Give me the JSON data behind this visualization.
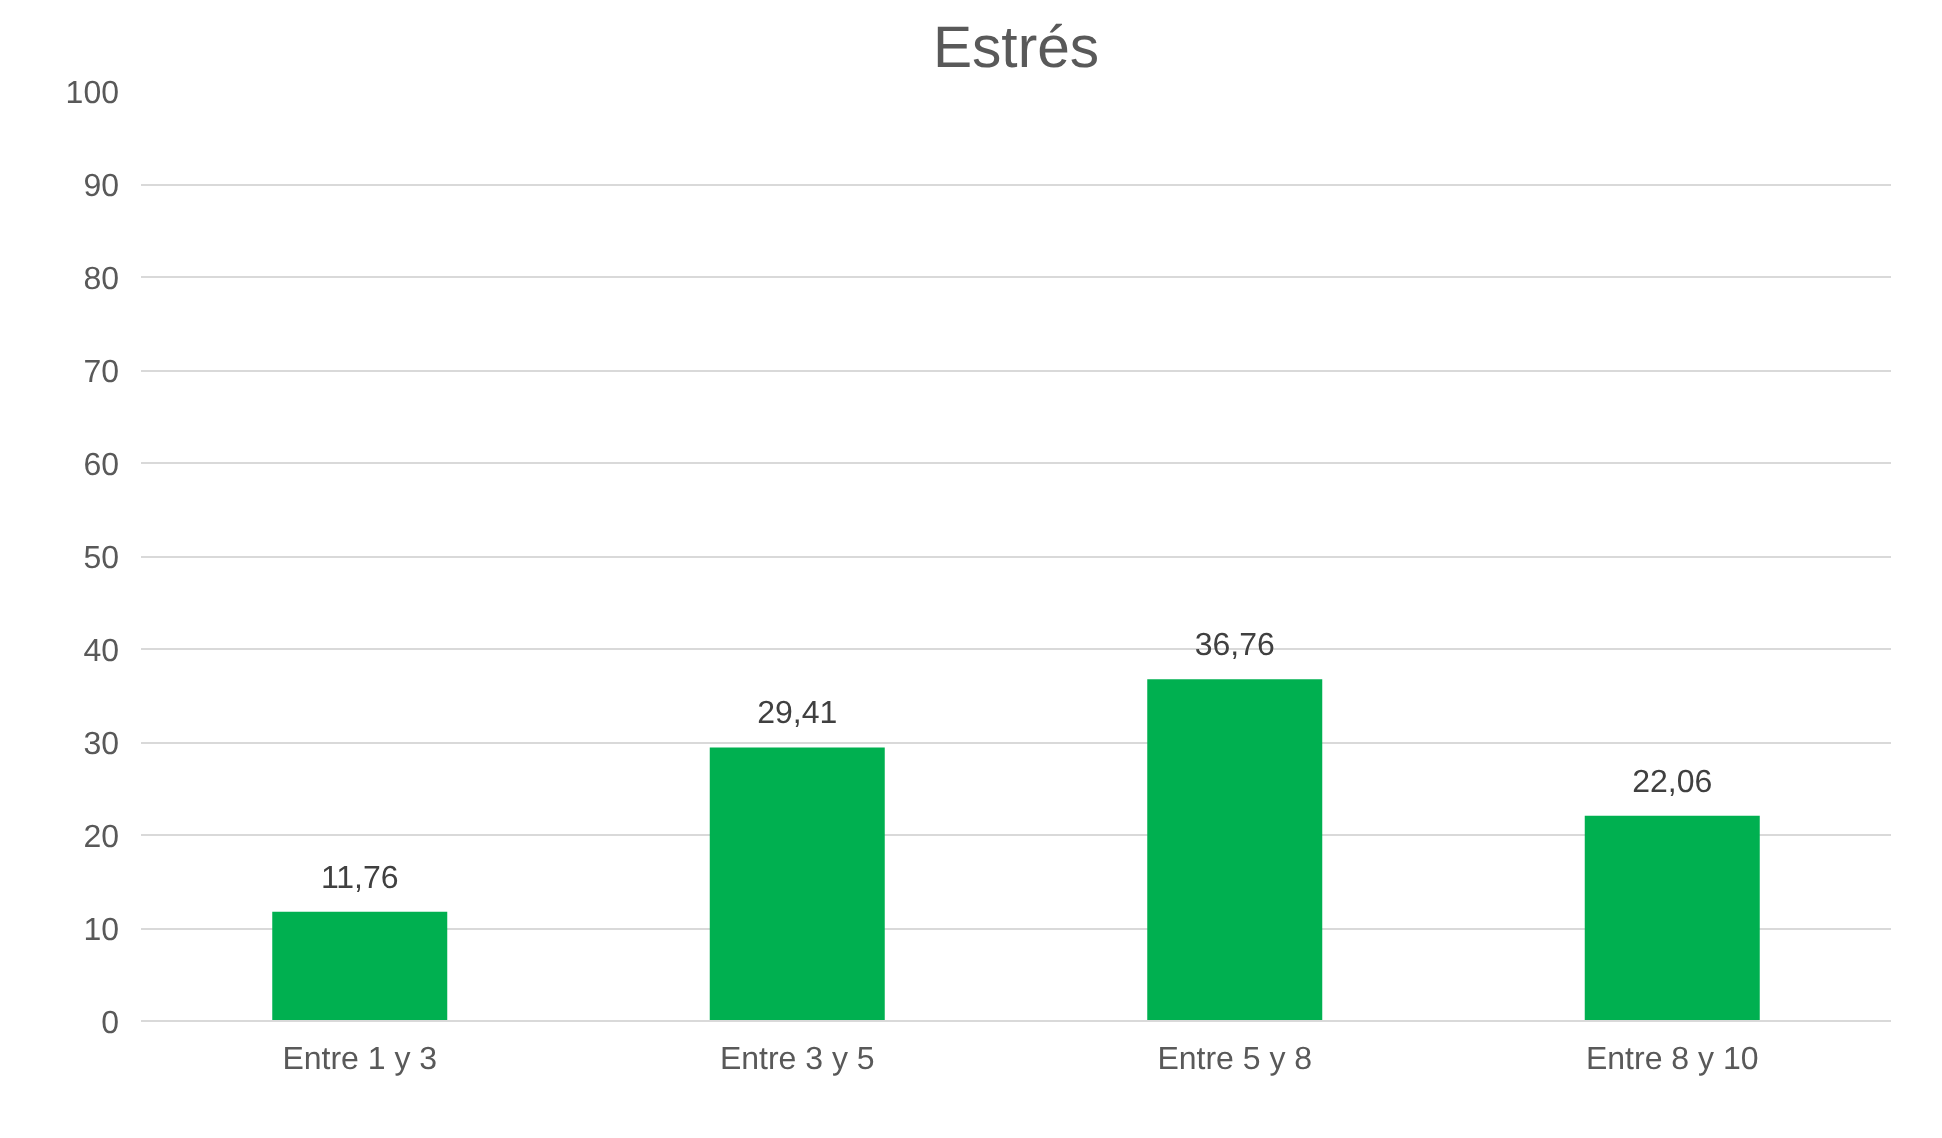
{
  "chart_data": {
    "type": "bar",
    "title": "Estrés",
    "categories": [
      "Entre 1 y 3",
      "Entre 3 y 5",
      "Entre 5 y 8",
      "Entre 8 y 10"
    ],
    "values": [
      11.76,
      29.41,
      36.76,
      22.06
    ],
    "value_labels": [
      "11,76",
      "29,41",
      "36,76",
      "22,06"
    ],
    "color": "#00b050",
    "ylim": [
      0,
      100
    ],
    "yticks": [
      0,
      10,
      20,
      30,
      40,
      50,
      60,
      70,
      80,
      90,
      100
    ],
    "grid": "y"
  }
}
